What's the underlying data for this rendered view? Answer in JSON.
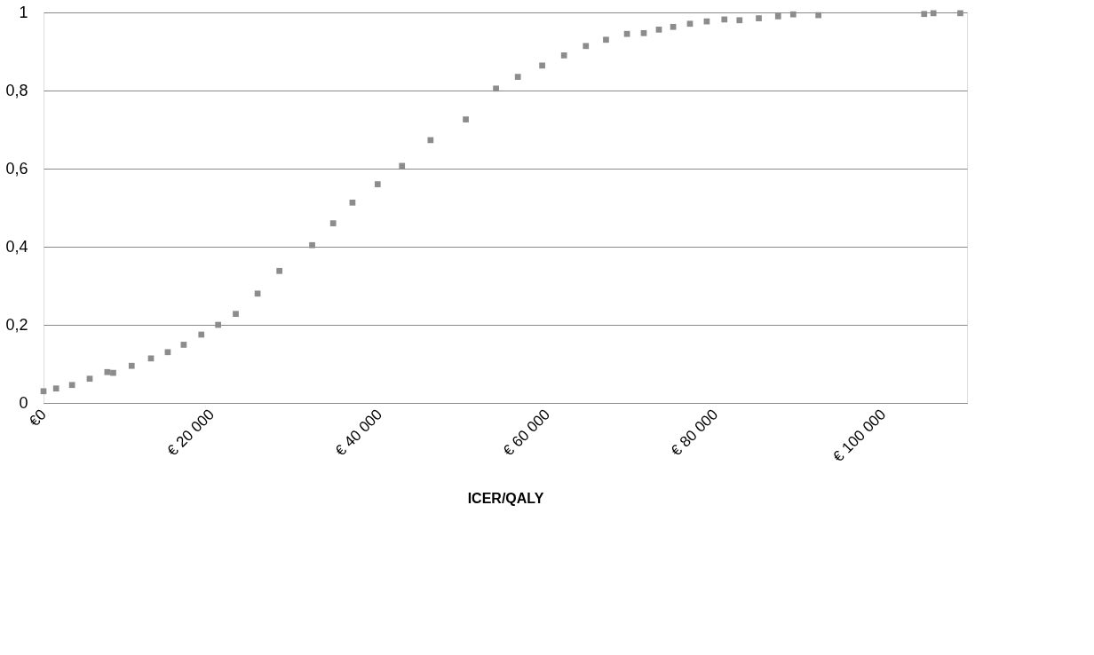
{
  "chart_data": {
    "type": "scatter",
    "xlabel": "ICER/QALY",
    "marker": "square",
    "grid": "y",
    "x": [
      0,
      1500,
      3400,
      5500,
      7600,
      8300,
      10500,
      12800,
      14800,
      16700,
      18800,
      20800,
      22900,
      25500,
      28100,
      32000,
      34500,
      36800,
      39800,
      42700,
      46100,
      50300,
      53900,
      56500,
      59400,
      62000,
      64600,
      67000,
      69500,
      71500,
      73300,
      75000,
      77000,
      79000,
      81100,
      82900,
      85200,
      87500,
      89300,
      92300,
      104900,
      106000,
      109200
    ],
    "series": [
      {
        "color": "#8c8c8c",
        "values": [
          0.03,
          0.037,
          0.046,
          0.062,
          0.079,
          0.077,
          0.095,
          0.114,
          0.13,
          0.149,
          0.175,
          0.2,
          0.228,
          0.28,
          0.338,
          0.404,
          0.46,
          0.513,
          0.56,
          0.607,
          0.673,
          0.726,
          0.805,
          0.835,
          0.864,
          0.89,
          0.914,
          0.93,
          0.945,
          0.947,
          0.956,
          0.963,
          0.971,
          0.977,
          0.982,
          0.98,
          0.985,
          0.99,
          0.995,
          0.993,
          0.996,
          0.998,
          0.998
        ]
      }
    ],
    "xlim": [
      0,
      110000
    ],
    "xticks": [
      {
        "value": 0,
        "label": "€0"
      },
      {
        "value": 20000,
        "label": "€ 20 000"
      },
      {
        "value": 40000,
        "label": "€ 40 000"
      },
      {
        "value": 60000,
        "label": "€ 60 000"
      },
      {
        "value": 80000,
        "label": "€ 80 000"
      },
      {
        "value": 100000,
        "label": "€ 100 000"
      }
    ],
    "ylim": [
      0,
      1
    ],
    "yticks": [
      0,
      {
        "value": 0.2,
        "label": "0,2"
      },
      {
        "value": 0.4,
        "label": "0,4"
      },
      {
        "value": 0.6,
        "label": "0,6"
      },
      {
        "value": 0.8,
        "label": "0,8"
      },
      1
    ]
  }
}
